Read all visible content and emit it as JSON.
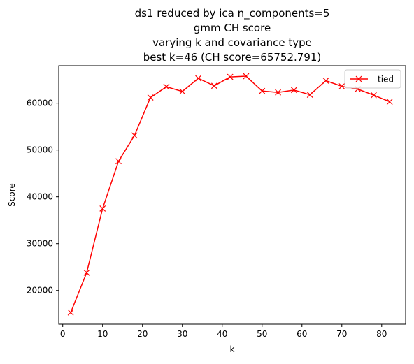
{
  "chart_data": {
    "type": "line",
    "title_lines": [
      "ds1 reduced by ica n_components=5",
      "gmm CH score",
      "varying k and covariance type",
      "best k=46 (CH score=65752.791)"
    ],
    "xlabel": "k",
    "ylabel": "Score",
    "xlim": [
      -1.0,
      86.0
    ],
    "ylim": [
      12800,
      68000
    ],
    "xticks": [
      0,
      10,
      20,
      30,
      40,
      50,
      60,
      70,
      80
    ],
    "yticks": [
      20000,
      30000,
      40000,
      50000,
      60000
    ],
    "grid": false,
    "legend_position": "upper right",
    "series": [
      {
        "name": "tied",
        "color": "#ff0000",
        "marker": "x",
        "x": [
          2,
          6,
          10,
          14,
          18,
          22,
          26,
          30,
          34,
          38,
          42,
          46,
          50,
          54,
          58,
          62,
          66,
          70,
          74,
          78,
          82
        ],
        "y": [
          15300,
          23800,
          37500,
          47600,
          53100,
          61200,
          63500,
          62500,
          65300,
          63700,
          65600,
          65752.791,
          62600,
          62300,
          62800,
          61800,
          64800,
          63600,
          63000,
          61700,
          60300
        ]
      }
    ]
  }
}
